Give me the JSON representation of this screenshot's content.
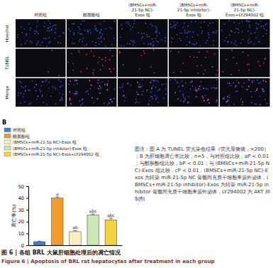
{
  "panel_a": {
    "columns": [
      [
        "对照组"
      ],
      [
        "醋胺酚组"
      ],
      [
        "(BMSCs+miR-",
        "21-5p NC)-",
        "Exos 组"
      ],
      [
        "(BMSCs+miR-",
        "21-5p inhibitor)-",
        "Exos 组"
      ],
      [
        "(BMSCs+miR-",
        "21-5p NC)-",
        "Exos+LY294002 组"
      ]
    ],
    "rows": [
      "Hoechst",
      "TUNEL",
      "Merge"
    ]
  },
  "chart_data": {
    "type": "bar",
    "panel_label": "B",
    "y_label": "凋亡率(%)",
    "categories": [
      "对照组",
      "醋胺酚组",
      "(BMSCs+miR-21-5p NC)-Exos 组",
      "(BMSCs+miR-21-5p inhibitor)-Exos 组",
      "(BMSCs+miR-21-5p NC)-Exos+LY294002 组"
    ],
    "values": [
      3,
      40,
      11.5,
      25.5,
      21.5
    ],
    "errors": [
      0.5,
      1,
      1,
      1,
      1.5
    ],
    "annotations": [
      null,
      "a",
      "ab",
      "abc",
      "abc"
    ],
    "colors": [
      "#3f7fd0",
      "#f39c2a",
      "#f8f1c0",
      "#c9e8b6",
      "#f3d43f"
    ],
    "ylim": [
      0,
      50
    ],
    "yticks": [
      0,
      10,
      20,
      30,
      40,
      50
    ],
    "tick_labels": "y",
    "legend": "top-left"
  },
  "caption": {
    "note": "图注：图 A 为 TUNEL 荧光染色结果（荧光显微镜，×200）；B 为肝细胞凋亡率比较，n=5，与对照组比较，aP < 0.01；与醋胺酚组比较，bP < 0.01；与 (BMSCs+miR-21-5p NC)-Exos 组比较，cP < 0.01。(BMSCs+miR-21-5p NC)-Exos 为转染 miR-21-5p NC 骨髓间充质干细胞来源外泌体，(BMSCs+miR-21-5p inhibitor)-Exos 为转染 miR-21-5p inhibitor 骨髓间充质干细胞来源外泌体，LY294002 为 AKT 抑制剂",
    "title_zh": "图 6 | 各组 BRL 大鼠肝细胞处理后的凋亡情况",
    "title_en": "Figure 6 | Apoptosis of BRL rat hepatocytes after treatment in each group"
  }
}
